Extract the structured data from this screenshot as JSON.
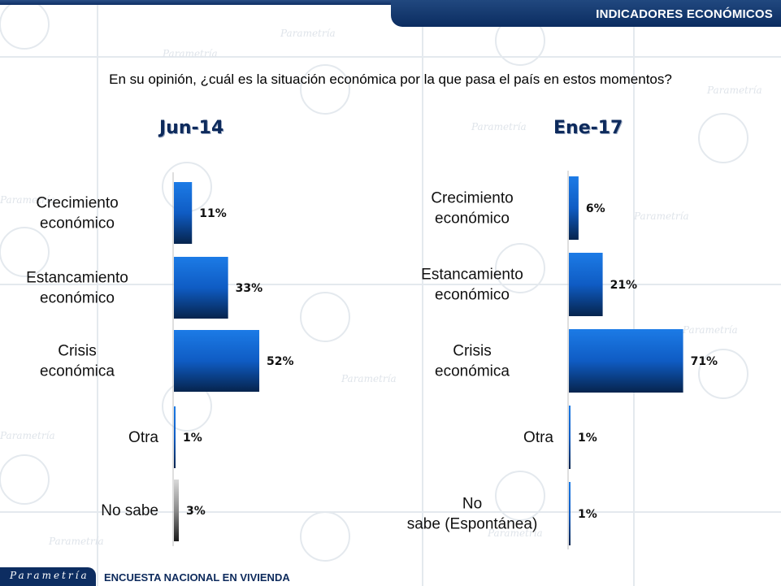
{
  "header": {
    "title": "INDICADORES ECONÓMICOS"
  },
  "question": "En su opinión, ¿cuál es la situación económica por la que pasa el país en estos momentos?",
  "footer": {
    "brand": "Parametría",
    "survey": "ENCUESTA NACIONAL EN VIVIENDA"
  },
  "watermark": {
    "word": "Parametría"
  },
  "colors": {
    "bar_blue": "#1f6fd0",
    "bar_gray": "#888888",
    "navy": "#0d2a5c"
  },
  "chart_data": [
    {
      "type": "bar",
      "orientation": "horizontal",
      "title": "Jun-14",
      "categories": [
        "Crecimiento económico",
        "Estancamiento económico",
        "Crisis económica",
        "Otra",
        "No sabe"
      ],
      "values": [
        11,
        33,
        52,
        1,
        3
      ],
      "value_labels": [
        "11%",
        "33%",
        "52%",
        "1%",
        "3%"
      ],
      "bar_styles": [
        "blue",
        "blue",
        "blue",
        "blue",
        "gray"
      ],
      "xlim": [
        0,
        100
      ]
    },
    {
      "type": "bar",
      "orientation": "horizontal",
      "title": "Ene-17",
      "categories": [
        "Crecimiento económico",
        "Estancamiento económico",
        "Crisis económica",
        "Otra",
        "No sabe (Espontánea)"
      ],
      "values": [
        6,
        21,
        71,
        1,
        1
      ],
      "value_labels": [
        "6%",
        "21%",
        "71%",
        "1%",
        "1%"
      ],
      "bar_styles": [
        "blue",
        "blue",
        "blue",
        "blue",
        "blue"
      ],
      "xlim": [
        0,
        100
      ]
    }
  ]
}
